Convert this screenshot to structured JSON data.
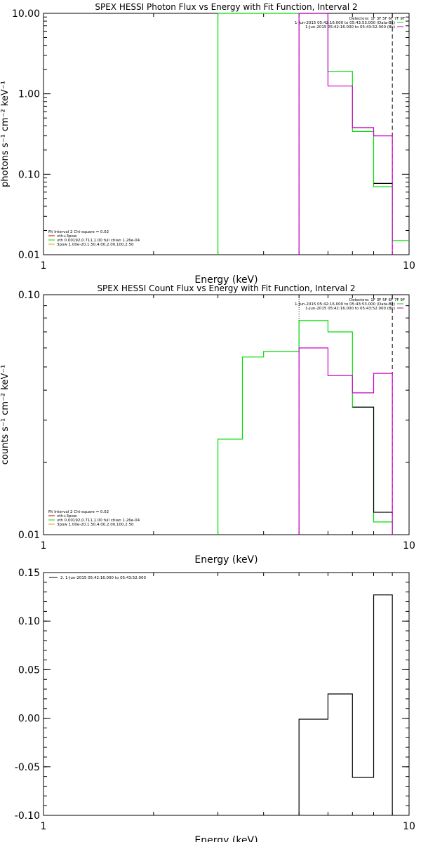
{
  "chart_data": [
    {
      "type": "line",
      "title": "SPEX HESSI Photon Flux vs Energy with Fit Function, Interval 2",
      "xlabel": "Energy (keV)",
      "ylabel": "photons s⁻¹ cm⁻² keV⁻¹",
      "xscale": "log",
      "yscale": "log",
      "xlim": [
        1,
        10
      ],
      "ylim": [
        0.01,
        10
      ],
      "x_ticks": [
        {
          "v": 1,
          "label": "1"
        },
        {
          "v": 10,
          "label": "10"
        }
      ],
      "y_ticks": [
        {
          "v": 0.01,
          "label": "0.01"
        },
        {
          "v": 0.1,
          "label": "0.10"
        },
        {
          "v": 1,
          "label": "1.00"
        },
        {
          "v": 10,
          "label": "10.00"
        }
      ],
      "vlines": [
        {
          "x": 5.0,
          "color": "#000000",
          "dash": "1,2"
        },
        {
          "x": 9.0,
          "color": "#000000",
          "dash": "6,4"
        }
      ],
      "series": [
        {
          "color": "#00dd00",
          "edges": [
            3,
            4,
            5,
            6,
            7,
            8,
            9,
            10
          ],
          "values": [
            10,
            10,
            10,
            1.9,
            0.34,
            0.07,
            0.015
          ],
          "drop_first": true
        },
        {
          "color": "#cc00cc",
          "edges": [
            5,
            6,
            7,
            8,
            9
          ],
          "values": [
            10,
            1.25,
            0.38,
            0.3
          ],
          "drop_first": true,
          "drop_last": true
        },
        {
          "color": "#000000",
          "edges": [
            8,
            9
          ],
          "values": [
            0.077
          ]
        }
      ],
      "legend_top": {
        "lines": [
          {
            "text": "Detectors: 1F 3F 5F 6F 7F 9F",
            "color": ""
          },
          {
            "text": "1-Jun-2015 05:42:16.000 to 05:43:53.000 (Data-Bk)",
            "color": "#00dd00"
          },
          {
            "text": "1-Jun-2015 05:42:16.000 to 05:43:52.000 (Bk)",
            "color": "#cc00cc"
          }
        ]
      },
      "legend_bottom": {
        "lines": [
          {
            "text": "Fit Interval  2   Chi-square = 0.02",
            "color": ""
          },
          {
            "text": "vth+3pow",
            "color": "#cc0000"
          },
          {
            "text": "vth 0.00192,0.711,1.00  full chian 1.26e-04",
            "color": "#00dd00"
          },
          {
            "text": "3pow 1.00e-20,1.50,4.00,2.00,100,2.50",
            "color": "#ddaa00"
          }
        ]
      }
    },
    {
      "type": "line",
      "title": "SPEX HESSI Count Flux vs Energy with Fit Function, Interval 2",
      "xlabel": "Energy (keV)",
      "ylabel": "counts s⁻¹ cm⁻² keV⁻¹",
      "xscale": "log",
      "yscale": "log",
      "xlim": [
        1,
        10
      ],
      "ylim": [
        0.01,
        0.1
      ],
      "x_ticks": [
        {
          "v": 1,
          "label": "1"
        },
        {
          "v": 10,
          "label": "10"
        }
      ],
      "y_ticks": [
        {
          "v": 0.01,
          "label": "0.01"
        },
        {
          "v": 0.1,
          "label": "0.10"
        }
      ],
      "vlines": [
        {
          "x": 5.0,
          "color": "#000000",
          "dash": "1,2"
        },
        {
          "x": 9.0,
          "color": "#000000",
          "dash": "6,4"
        }
      ],
      "series": [
        {
          "color": "#00dd00",
          "edges": [
            3,
            3.5,
            4,
            5,
            6,
            7,
            8,
            9
          ],
          "values": [
            0.025,
            0.055,
            0.058,
            0.078,
            0.07,
            0.034,
            0.0113
          ],
          "drop_first": true,
          "drop_last": true
        },
        {
          "color": "#cc00cc",
          "edges": [
            5,
            6,
            7,
            8,
            9
          ],
          "values": [
            0.06,
            0.046,
            0.039,
            0.047
          ],
          "drop_first": true,
          "drop_last": true
        },
        {
          "color": "#000000",
          "edges": [
            7,
            8,
            9
          ],
          "values": [
            0.034,
            0.0124
          ]
        }
      ],
      "legend_top": {
        "lines": [
          {
            "text": "Detectors: 1F 3F 5F 6F 7F 9F",
            "color": ""
          },
          {
            "text": "1-Jun-2015 05:42:16.000 to 05:43:53.000 (Data-Bk)",
            "color": "#00dd00"
          },
          {
            "text": "1-Jun-2015 05:42:16.000 to 05:43:52.000 (Bk)",
            "color": "#cc00cc"
          }
        ]
      },
      "legend_bottom": {
        "lines": [
          {
            "text": "Fit Interval  2   Chi-square = 0.02",
            "color": ""
          },
          {
            "text": "vth+3pow",
            "color": "#cc0000"
          },
          {
            "text": "vth 0.00192,0.711,1.00  full chian 1.26e-04",
            "color": "#00dd00"
          },
          {
            "text": "3pow 1.00e-20,1.50,4.00,2.00,100,2.50",
            "color": "#ddaa00"
          }
        ]
      }
    },
    {
      "type": "line",
      "title": "",
      "xlabel": "Energy (keV)",
      "ylabel": "",
      "xscale": "log",
      "yscale": "linear",
      "xlim": [
        1,
        10
      ],
      "ylim": [
        -0.1,
        0.15
      ],
      "x_ticks": [
        {
          "v": 1,
          "label": "1"
        },
        {
          "v": 10,
          "label": "10"
        }
      ],
      "y_ticks": [
        {
          "v": -0.1,
          "label": "-0.10"
        },
        {
          "v": -0.05,
          "label": "-0.05"
        },
        {
          "v": 0,
          "label": "0.00"
        },
        {
          "v": 0.05,
          "label": "0.05"
        },
        {
          "v": 0.1,
          "label": "0.10"
        },
        {
          "v": 0.15,
          "label": "0.15"
        }
      ],
      "vlines": [],
      "series": [
        {
          "color": "#000000",
          "edges": [
            5,
            6,
            7,
            8,
            9
          ],
          "values": [
            -0.001,
            0.025,
            -0.061,
            0.127
          ],
          "drop_first": true,
          "drop_last": true
        }
      ],
      "legend_top": {
        "lines": [
          {
            "text": "2.  1-Jun-2015 05:42:16.000 to 05:43:52.000",
            "color": "#000000"
          }
        ]
      },
      "legend_bottom": {
        "lines": []
      }
    }
  ]
}
